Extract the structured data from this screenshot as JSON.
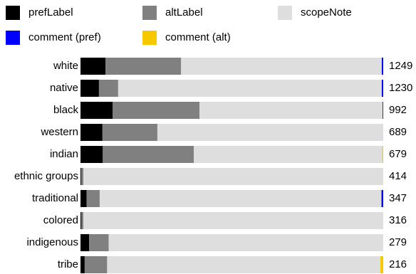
{
  "chart_data": {
    "type": "bar",
    "orientation": "horizontal",
    "stacked": true,
    "normalized": true,
    "categories": [
      "white",
      "native",
      "black",
      "western",
      "indian",
      "ethnic groups",
      "traditional",
      "colored",
      "indigenous",
      "tribe"
    ],
    "totals": [
      1249,
      1230,
      992,
      689,
      679,
      414,
      347,
      316,
      279,
      216
    ],
    "series": [
      {
        "name": "prefLabel",
        "color": "#000000",
        "values": [
          103,
          75,
          105,
          50,
          50,
          1,
          7,
          1,
          8,
          3
        ]
      },
      {
        "name": "altLabel",
        "color": "#808080",
        "values": [
          312,
          78,
          285,
          125,
          204,
          3,
          15,
          2,
          18,
          16
        ]
      },
      {
        "name": "scopeNote",
        "color": "#dedede",
        "values": [
          828,
          1071,
          600,
          514,
          423,
          410,
          323,
          313,
          253,
          195
        ]
      },
      {
        "name": "comment (pref)",
        "color": "#0000ff",
        "values": [
          6,
          6,
          2,
          0,
          0,
          0,
          2,
          0,
          0,
          0
        ]
      },
      {
        "name": "comment (alt)",
        "color": "#f5c800",
        "values": [
          0,
          0,
          0,
          0,
          2,
          0,
          0,
          0,
          0,
          2
        ]
      }
    ]
  }
}
